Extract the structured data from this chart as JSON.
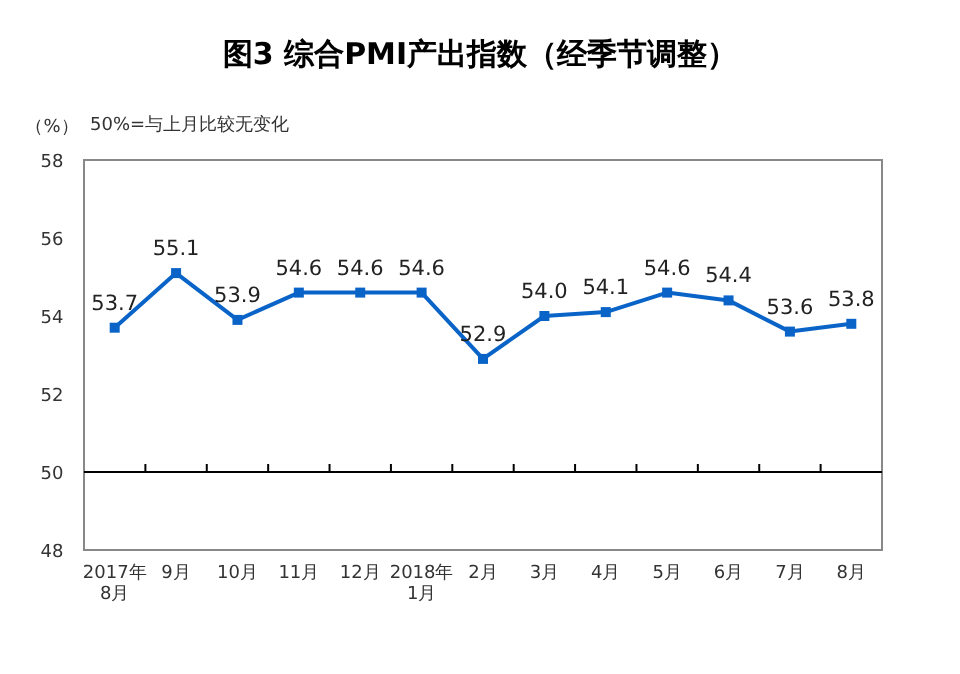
{
  "chart_data": {
    "type": "line",
    "title": "图3 综合PMI产出指数（经季节调整）",
    "ylabel": "（%）",
    "annotations": [
      "50%=与上月比较无变化"
    ],
    "categories": [
      "2017年\n8月",
      "9月",
      "10月",
      "11月",
      "12月",
      "2018年\n1月",
      "2月",
      "3月",
      "4月",
      "5月",
      "6月",
      "7月",
      "8月"
    ],
    "series": [
      {
        "color": "#0a64c8",
        "values": [
          53.7,
          55.1,
          53.9,
          54.6,
          54.6,
          54.6,
          52.9,
          54.0,
          54.1,
          54.6,
          54.4,
          53.6,
          53.8
        ],
        "value_labels": [
          "53.7",
          "55.1",
          "53.9",
          "54.6",
          "54.6",
          "54.6",
          "52.9",
          "54.0",
          "54.1",
          "54.6",
          "54.4",
          "53.6",
          "53.8"
        ]
      }
    ],
    "ylim": [
      48,
      58
    ],
    "yticks": [
      48,
      50,
      52,
      54,
      56,
      58
    ],
    "ref_lines": [
      {
        "axis": "y",
        "value": 50,
        "color": "#000000"
      }
    ],
    "grid": false,
    "marker": "square",
    "line_style": "solid"
  }
}
